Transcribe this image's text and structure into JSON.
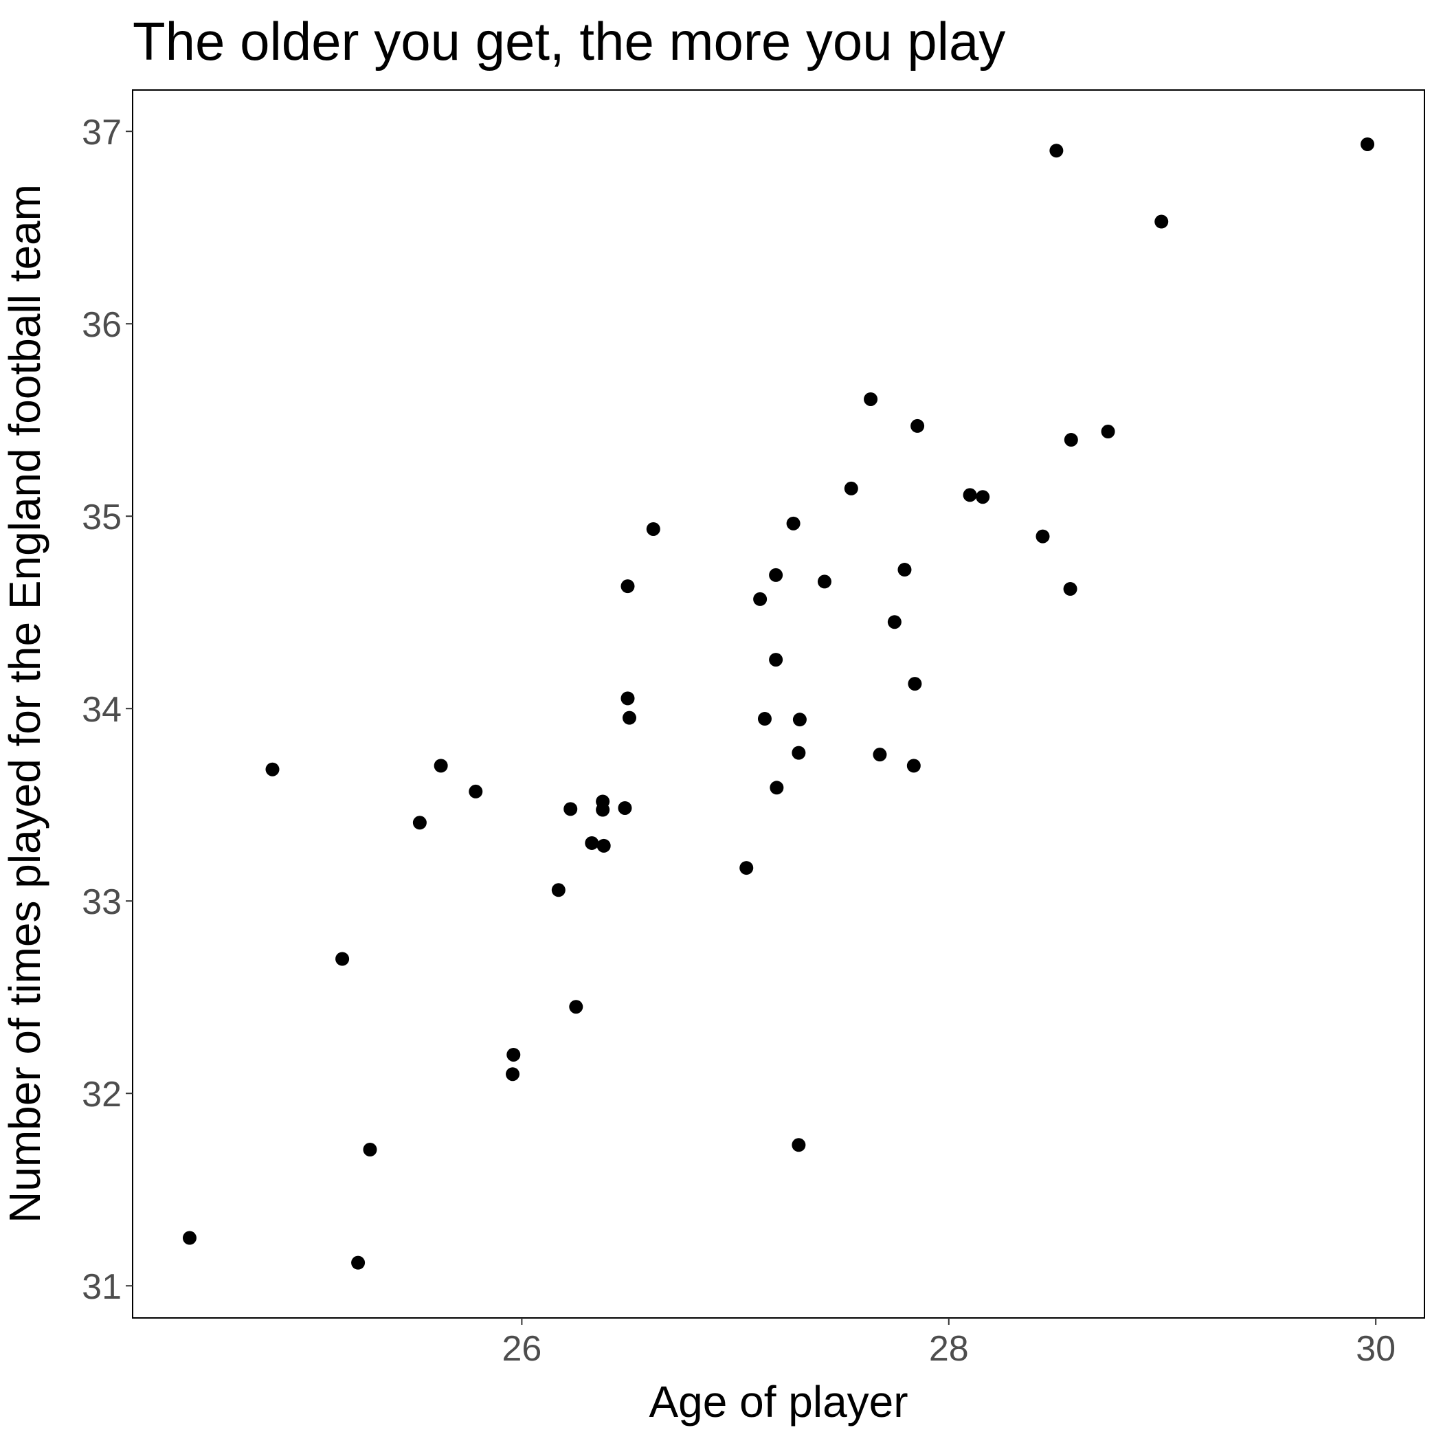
{
  "chart_data": {
    "type": "scatter",
    "title": "The older you get, the more you play",
    "x_label": "Age of player",
    "y_label": "Number of times played for the England football team",
    "color": "#000000",
    "x": [
      29.961,
      28.504,
      28.996,
      27.634,
      27.853,
      28.746,
      28.573,
      27.543,
      28.099,
      28.159,
      27.272,
      26.616,
      28.44,
      27.793,
      27.19,
      27.418,
      26.496,
      28.569,
      27.116,
      27.746,
      27.19,
      27.841,
      26.496,
      26.504,
      27.138,
      27.302,
      24.832,
      25.621,
      27.297,
      27.677,
      27.836,
      25.784,
      27.194,
      26.379,
      26.228,
      26.379,
      26.483,
      25.522,
      26.328,
      26.384,
      27.052,
      26.172,
      25.159,
      26.254,
      25.961,
      25.957,
      25.289,
      27.297,
      24.444,
      25.233
    ],
    "values": [
      36.933,
      36.9,
      36.531,
      35.608,
      35.469,
      35.44,
      35.397,
      35.144,
      35.11,
      35.1,
      34.962,
      34.933,
      34.895,
      34.722,
      34.694,
      34.66,
      34.636,
      34.622,
      34.569,
      34.45,
      34.254,
      34.129,
      34.053,
      33.952,
      33.947,
      33.943,
      33.684,
      33.703,
      33.77,
      33.761,
      33.703,
      33.569,
      33.589,
      33.517,
      33.478,
      33.474,
      33.483,
      33.407,
      33.301,
      33.287,
      33.172,
      33.057,
      32.699,
      32.45,
      32.201,
      32.1,
      31.708,
      31.732,
      31.249,
      31.12
    ],
    "xlim": [
      24.177,
      30.228
    ],
    "ylim": [
      30.833,
      37.215
    ],
    "xticks": [
      26,
      28,
      30
    ],
    "yticks": [
      31,
      32,
      33,
      34,
      35,
      36,
      37
    ],
    "grid": false
  }
}
